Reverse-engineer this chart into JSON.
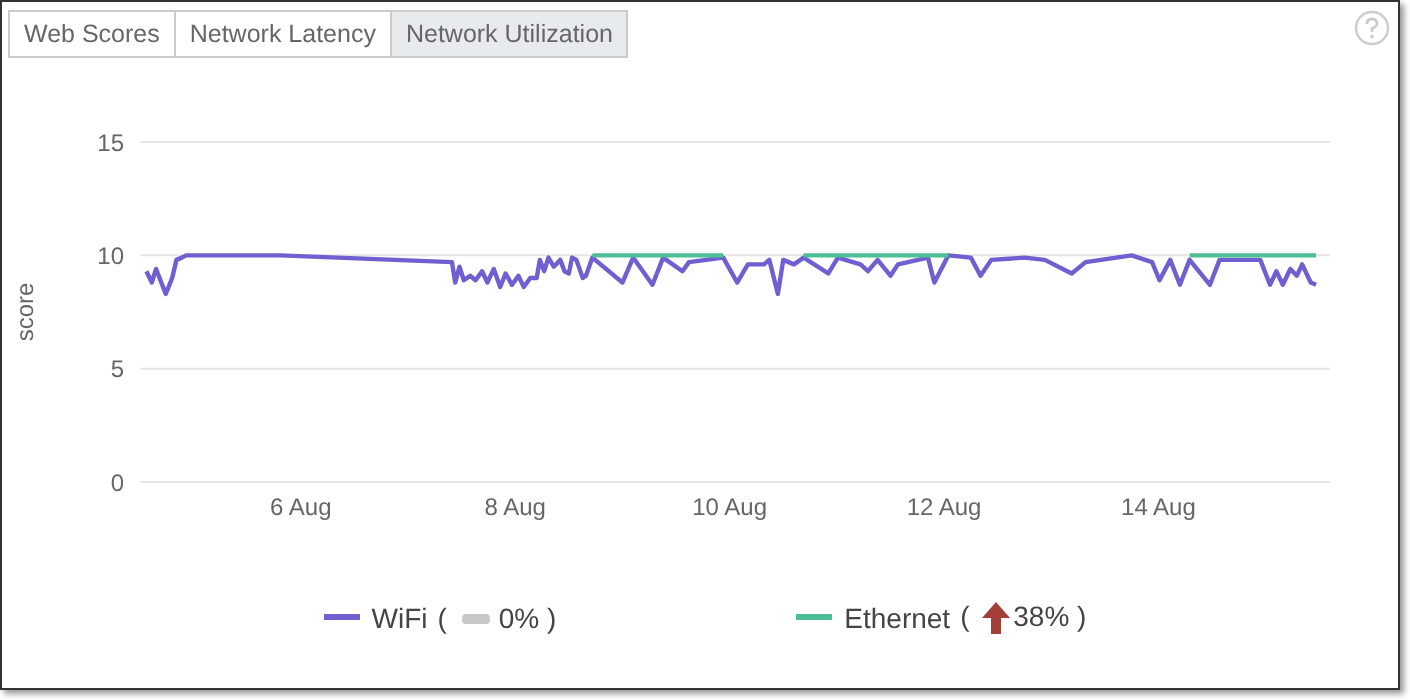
{
  "chart_data": {
    "type": "line",
    "ylabel": "score",
    "annotations": [
      "Web Scores",
      "Network Latency",
      "Network Utilization",
      "( 0% )",
      "( 38% )"
    ],
    "xlim": [
      "--08-04T12:00",
      "--08-15T14:24"
    ],
    "xticks": [
      {
        "value": "--08-06",
        "label": "6 Aug"
      },
      {
        "value": "--08-08",
        "label": "8 Aug"
      },
      {
        "value": "--08-10",
        "label": "10 Aug"
      },
      {
        "value": "--08-12",
        "label": "12 Aug"
      },
      {
        "value": "--08-14",
        "label": "14 Aug"
      }
    ],
    "ylim": [
      0,
      15
    ],
    "yticks": [
      0,
      5,
      10,
      15
    ],
    "grid": "y",
    "legend": "bottom",
    "marker": "none",
    "line_style": "solid",
    "series": [
      {
        "name": "WiFi",
        "color": "#6f5fd0",
        "x": [
          "--08-04T13:26",
          "--08-04T14:38",
          "--08-04T15:36",
          "--08-04T16:34",
          "--08-04T17:46",
          "--08-04T19:12",
          "--08-04T20:10",
          "--08-04T21:22",
          "--08-04T22:19",
          "--08-05T19:26",
          "--08-07T09:50",
          "--08-07T10:34",
          "--08-07T11:31",
          "--08-07T12:29",
          "--08-07T13:55",
          "--08-07T15:07",
          "--08-07T16:34",
          "--08-07T17:46",
          "--08-07T19:12",
          "--08-07T20:38",
          "--08-07T21:50",
          "--08-07T23:17",
          "--08-08T00:43",
          "--08-08T01:55",
          "--08-08T03:22",
          "--08-08T04:48",
          "--08-08T05:31",
          "--08-08T06:29",
          "--08-08T07:26",
          "--08-08T08:38",
          "--08-08T10:05",
          "--08-08T11:02",
          "--08-08T12:00",
          "--08-08T12:43",
          "--08-08T13:41",
          "--08-08T15:07",
          "--08-08T15:50",
          "--08-08T17:17",
          "--08-09T00:00",
          "--08-09T02:24",
          "--08-09T06:43",
          "--08-09T09:07",
          "--08-09T13:26",
          "--08-09T14:53",
          "--08-09T22:34",
          "--08-10T01:41",
          "--08-10T04:05",
          "--08-10T07:41",
          "--08-10T08:53",
          "--08-10T10:48",
          "--08-10T12:00",
          "--08-10T14:24",
          "--08-10T16:34",
          "--08-10T22:05",
          "--08-11T00:14",
          "--08-11T05:17",
          "--08-11T06:58",
          "--08-11T09:07",
          "--08-11T12:00",
          "--08-11T13:41",
          "--08-11T20:24",
          "--08-11T21:50",
          "--08-12T00:58",
          "--08-12T06:00",
          "--08-12T08:10",
          "--08-12T10:34",
          "--08-12T18:00",
          "--08-12T22:34",
          "--08-13T04:34",
          "--08-13T07:41",
          "--08-13T18:00",
          "--08-13T22:34",
          "--08-14T00:14",
          "--08-14T02:38",
          "--08-14T04:48",
          "--08-14T06:58",
          "--08-14T11:31",
          "--08-14T13:41",
          "--08-14T22:48",
          "--08-15T00:58",
          "--08-15T02:24",
          "--08-15T03:50",
          "--08-15T05:31",
          "--08-15T06:58",
          "--08-15T08:10",
          "--08-15T10:05",
          "--08-15T11:17"
        ],
        "values": [
          9.3,
          8.8,
          9.4,
          8.9,
          8.3,
          9.0,
          9.8,
          9.9,
          10.0,
          10.0,
          9.7,
          8.8,
          9.5,
          8.9,
          9.1,
          8.9,
          9.3,
          8.8,
          9.4,
          8.6,
          9.2,
          8.7,
          9.1,
          8.6,
          9.0,
          9.0,
          9.8,
          9.3,
          9.9,
          9.5,
          9.8,
          9.3,
          9.2,
          9.9,
          9.8,
          9.0,
          9.1,
          9.9,
          8.8,
          9.9,
          8.7,
          9.9,
          9.3,
          9.7,
          9.9,
          8.8,
          9.6,
          9.6,
          9.8,
          8.3,
          9.8,
          9.6,
          9.9,
          9.2,
          9.9,
          9.6,
          9.3,
          9.8,
          9.1,
          9.6,
          9.9,
          8.8,
          10.0,
          9.9,
          9.1,
          9.8,
          9.9,
          9.8,
          9.2,
          9.7,
          10.0,
          9.7,
          8.9,
          9.8,
          8.7,
          9.8,
          8.7,
          9.8,
          9.8,
          8.7,
          9.3,
          8.7,
          9.4,
          9.1,
          9.6,
          8.8,
          8.7
        ]
      },
      {
        "name": "Ethernet",
        "color": "#4dbf94",
        "x": [
          "--08-08T17:17",
          "--08-09T22:34",
          "--08-09T22:48",
          "--08-10T16:34",
          "--08-12T00:58",
          "--08-12T01:12",
          "--08-14T06:58",
          "--08-15T11:17"
        ],
        "values": [
          10,
          10,
          null,
          10,
          10,
          null,
          10,
          10
        ]
      }
    ]
  }
}
